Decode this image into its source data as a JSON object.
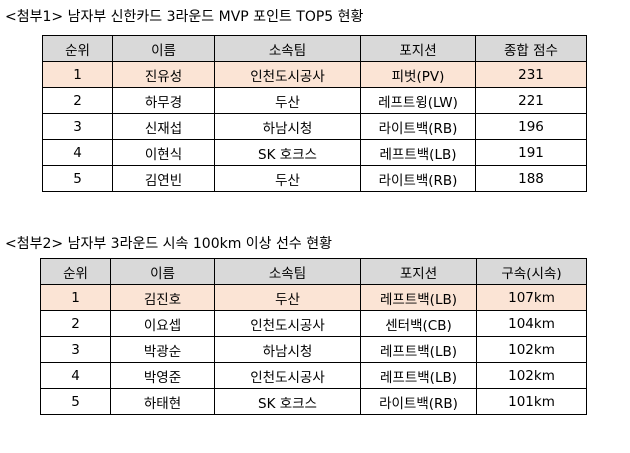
{
  "table1": {
    "caption": "<첨부1> 남자부 신한카드 3라운드 MVP 포인트 TOP5 현황",
    "headers": [
      "순위",
      "이름",
      "소속팀",
      "포지션",
      "종합 점수"
    ],
    "rows": [
      [
        "1",
        "진유성",
        "인천도시공사",
        "피벗(PV)",
        "231"
      ],
      [
        "2",
        "하무경",
        "두산",
        "레프트윙(LW)",
        "221"
      ],
      [
        "3",
        "신재섭",
        "하남시청",
        "라이트백(RB)",
        "196"
      ],
      [
        "4",
        "이현식",
        "SK 호크스",
        "레프트백(LB)",
        "191"
      ],
      [
        "5",
        "김연빈",
        "두산",
        "라이트백(RB)",
        "188"
      ]
    ]
  },
  "table2": {
    "caption": "<첨부2> 남자부 3라운드 시속 100km 이상 선수 현황",
    "headers": [
      "순위",
      "이름",
      "소속팀",
      "포지션",
      "구속(시속)"
    ],
    "rows": [
      [
        "1",
        "김진호",
        "두산",
        "레프트백(LB)",
        "107km"
      ],
      [
        "2",
        "이요셉",
        "인천도시공사",
        "센터백(CB)",
        "104km"
      ],
      [
        "3",
        "박광순",
        "하남시청",
        "레프트백(LB)",
        "102km"
      ],
      [
        "4",
        "박영준",
        "인천도시공사",
        "레프트백(LB)",
        "102km"
      ],
      [
        "5",
        "하태현",
        "SK 호크스",
        "라이트백(RB)",
        "101km"
      ]
    ]
  },
  "colors": {
    "header_bg": "#d9d9d9",
    "highlight_bg": "#fbe4d5"
  }
}
